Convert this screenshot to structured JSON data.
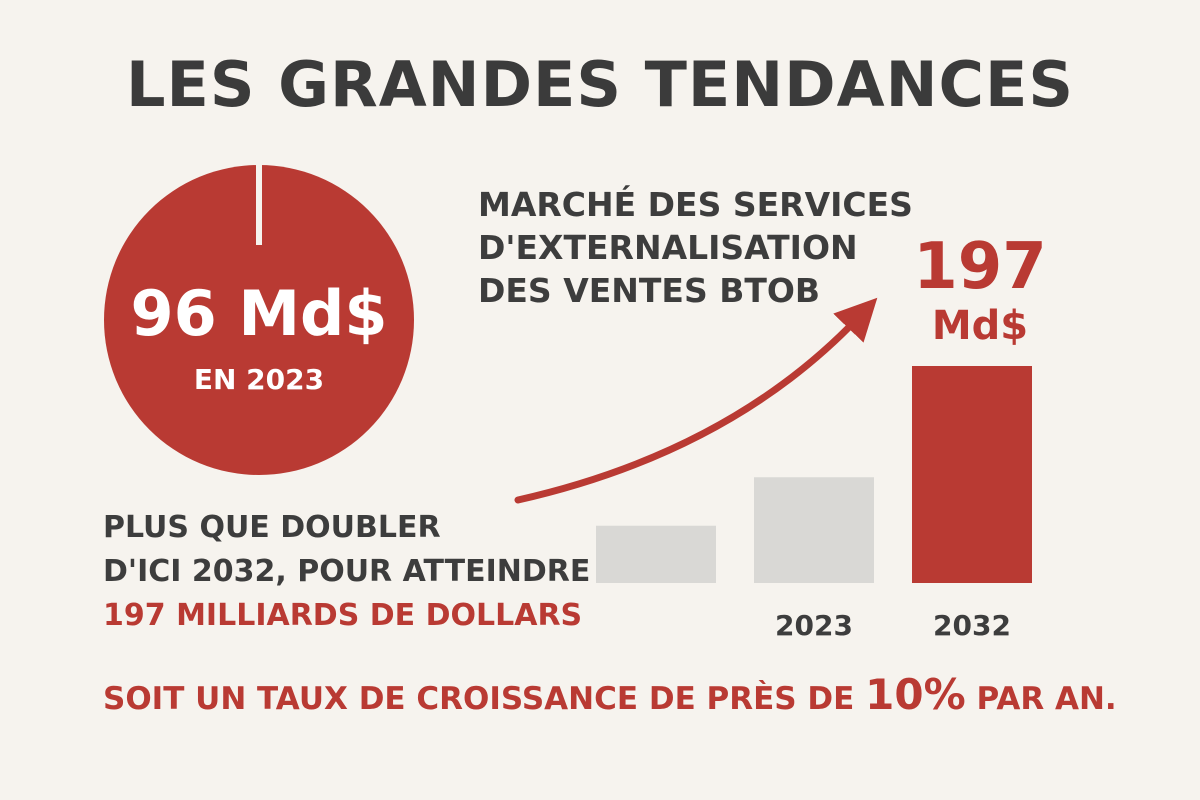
{
  "title": "LES GRANDES TENDANCES",
  "circle": {
    "value_label": "96 Md$",
    "sub_label": "EN 2023"
  },
  "market_label": [
    "MARCHÉ DES SERVICES",
    "D'EXTERNALISATION",
    "DES VENTES BTOB"
  ],
  "highlight": {
    "value": "197",
    "unit": "Md$"
  },
  "left_text": {
    "line1": "PLUS QUE DOUBLER",
    "line2": "D'ICI 2032, POUR ATTEINDRE",
    "line3": "197 MILLIARDS DE DOLLARS"
  },
  "bottom": {
    "prefix": "SOIT UN TAUX DE CROISSANCE DE PRÈS DE ",
    "pct": "10%",
    "suffix": " PAR AN."
  },
  "colors": {
    "accent": "#b93a33",
    "bar_gray": "#d9d8d5",
    "text": "#3d3d3d",
    "background": "#f6f3ee"
  },
  "chart_data": {
    "type": "bar",
    "categories": [
      "",
      "2023",
      "2032"
    ],
    "values": [
      52,
      96,
      197
    ],
    "bar_colors": [
      "#d9d8d5",
      "#d9d8d5",
      "#b93a33"
    ],
    "ylim": [
      0,
      197
    ],
    "xlabel": "",
    "ylabel": "",
    "grid": false,
    "trend_arrow": true
  }
}
